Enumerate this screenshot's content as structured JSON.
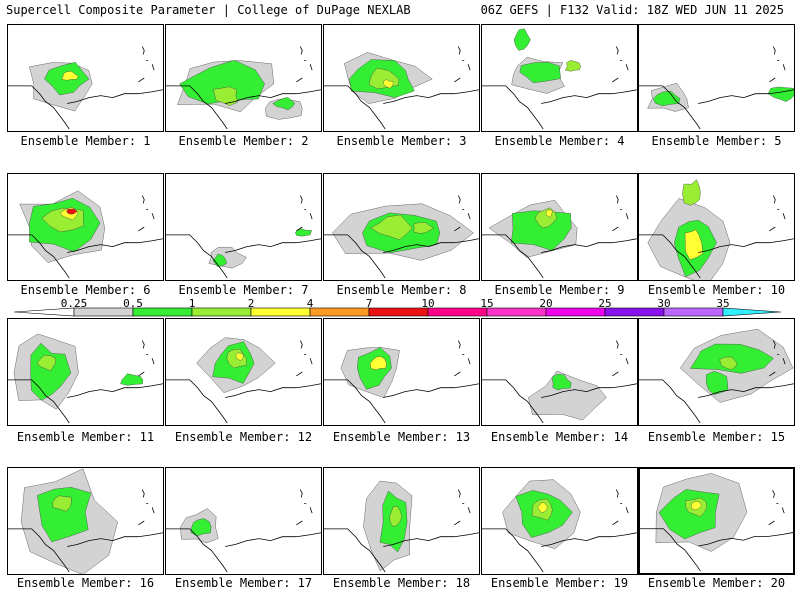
{
  "header": {
    "left_title": "Supercell Composite Parameter | College of DuPage NEXLAB",
    "right_title": "06Z GEFS | F132 Valid: 18Z WED JUN 11 2025"
  },
  "caption_prefix": "Ensemble Member: ",
  "members": [
    {
      "label": "Ensemble Member: 1",
      "selected": false
    },
    {
      "label": "Ensemble Member: 2",
      "selected": false
    },
    {
      "label": "Ensemble Member: 3",
      "selected": false
    },
    {
      "label": "Ensemble Member: 4",
      "selected": false
    },
    {
      "label": "Ensemble Member: 5",
      "selected": false
    },
    {
      "label": "Ensemble Member: 6",
      "selected": false
    },
    {
      "label": "Ensemble Member: 7",
      "selected": false
    },
    {
      "label": "Ensemble Member: 8",
      "selected": false
    },
    {
      "label": "Ensemble Member: 9",
      "selected": false
    },
    {
      "label": "Ensemble Member: 10",
      "selected": false
    },
    {
      "label": "Ensemble Member: 11",
      "selected": false
    },
    {
      "label": "Ensemble Member: 12",
      "selected": false
    },
    {
      "label": "Ensemble Member: 13",
      "selected": false
    },
    {
      "label": "Ensemble Member: 14",
      "selected": false
    },
    {
      "label": "Ensemble Member: 15",
      "selected": false
    },
    {
      "label": "Ensemble Member: 16",
      "selected": false
    },
    {
      "label": "Ensemble Member: 17",
      "selected": false
    },
    {
      "label": "Ensemble Member: 18",
      "selected": false
    },
    {
      "label": "Ensemble Member: 19",
      "selected": false
    },
    {
      "label": "Ensemble Member: 20",
      "selected": true
    }
  ],
  "colorbar": {
    "ticks": [
      "0.25",
      "0.5",
      "1",
      "2",
      "4",
      "7",
      "10",
      "15",
      "20",
      "25",
      "30",
      "35"
    ],
    "colors": [
      "#d3d3d3",
      "#33ee33",
      "#99ee33",
      "#ffff33",
      "#ff9922",
      "#ee1111",
      "#ff0088",
      "#ff33cc",
      "#ee00ee",
      "#8811ee",
      "#bb66ff",
      "#33eeff"
    ]
  }
}
